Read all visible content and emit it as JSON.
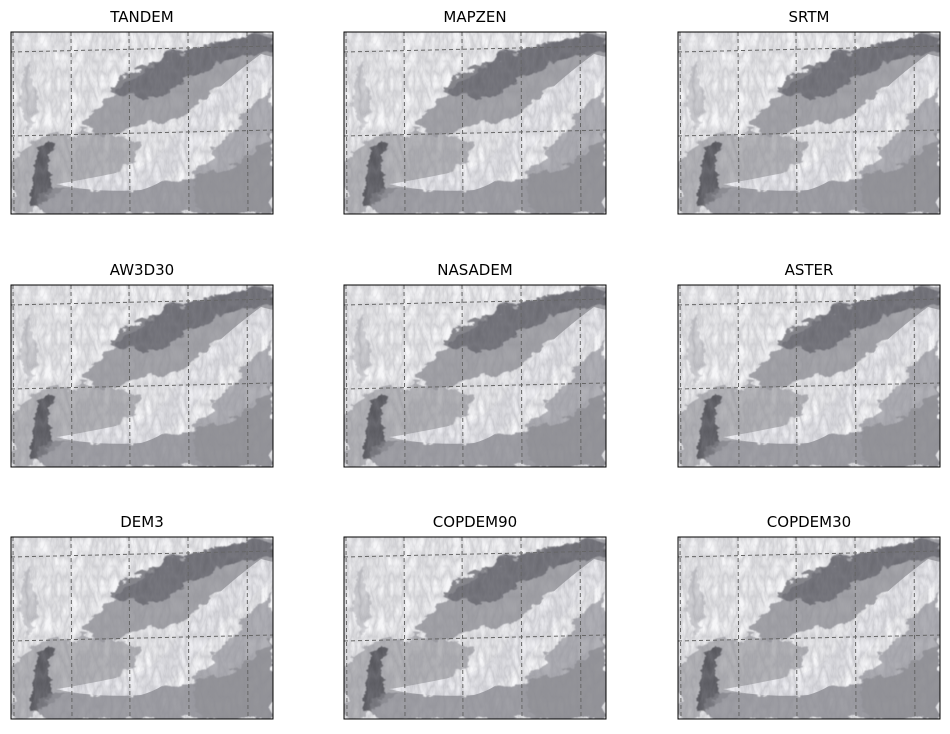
{
  "panels": [
    {
      "title": "TANDEM"
    },
    {
      "title": "MAPZEN"
    },
    {
      "title": "SRTM"
    },
    {
      "title": "AW3D30"
    },
    {
      "title": "NASADEM"
    },
    {
      "title": "ASTER"
    },
    {
      "title": "DEM3"
    },
    {
      "title": "COPDEM90"
    },
    {
      "title": "COPDEM30"
    }
  ]
}
